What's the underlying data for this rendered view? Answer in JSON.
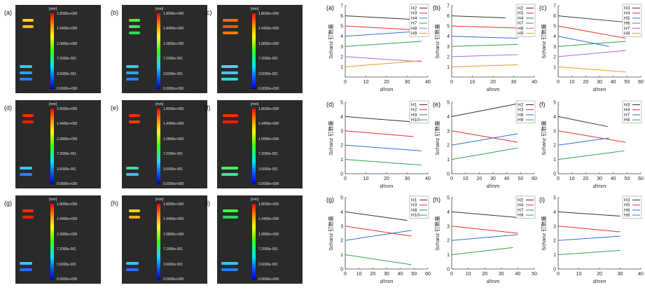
{
  "simulation": {
    "unit": "[mm]",
    "scale_ticks": [
      "1.8000e+000",
      "1.4400e+000",
      "1.0800e+000",
      "7.2000e-001",
      "3.6000e-001",
      "0.0000e+000"
    ],
    "panels": [
      {
        "label": "(a)",
        "top_pins": [
          "#ffd400",
          "#ffc000"
        ],
        "bottom_pins": [
          "#35c6ff",
          "#20a8ff",
          "#2a7bff"
        ]
      },
      {
        "label": "(b)",
        "top_pins": [
          "#3cff3c",
          "#2fe86a",
          "#29d85a"
        ],
        "bottom_pins": [
          "#35c6ff",
          "#1fa8ff",
          "#2a7bff"
        ]
      },
      {
        "label": "(c)",
        "top_pins": [
          "#ff6a00",
          "#ff5200",
          "#ff7a00"
        ],
        "bottom_pins": [
          "#4cd1ff",
          "#3ec8ff",
          "#2fd9d9"
        ]
      },
      {
        "label": "(d)",
        "top_pins": [
          "#ff2a00",
          "#ff1a00"
        ],
        "bottom_pins": [
          "#35c6ff",
          "#2a7bff"
        ]
      },
      {
        "label": "(e)",
        "top_pins": [
          "#ff2a00",
          "#ff3a00"
        ],
        "bottom_pins": [
          "#35e0a0",
          "#2fc0ff"
        ]
      },
      {
        "label": "(f)",
        "top_pins": [
          "#ff2a00",
          "#ff1a00"
        ],
        "bottom_pins": [
          "#3cff5a",
          "#35e8a0"
        ]
      },
      {
        "label": "(g)",
        "top_pins": [
          "#ff2a00",
          "#ff2000"
        ],
        "bottom_pins": [
          "#35c6ff",
          "#2a6bff"
        ]
      },
      {
        "label": "(h)",
        "top_pins": [
          "#ffd400",
          "#ffb000"
        ],
        "bottom_pins": [
          "#35c6ff",
          "#2a6bff"
        ]
      },
      {
        "label": "(i)",
        "top_pins": [
          "#3cff3c",
          "#29d85a"
        ],
        "bottom_pins": [
          "#35c6ff",
          "#2a7bff"
        ]
      }
    ]
  },
  "chart_data": [
    {
      "type": "line",
      "panel": "(a)",
      "xlabel": "d/mm",
      "ylabel": "Schanz 钉数量",
      "xlim": [
        0,
        40
      ],
      "ylim": [
        0,
        7
      ],
      "xticks": [
        0,
        10,
        20,
        30,
        40
      ],
      "yticks": [
        1,
        2,
        3,
        4,
        5,
        6,
        7
      ],
      "series": [
        {
          "name": "H2",
          "color": "#333333",
          "x": [
            0,
            37
          ],
          "y": [
            6.0,
            5.6
          ]
        },
        {
          "name": "H3",
          "color": "#e8302a",
          "x": [
            0,
            37
          ],
          "y": [
            5.0,
            4.6
          ]
        },
        {
          "name": "H4",
          "color": "#2f6de0",
          "x": [
            0,
            37
          ],
          "y": [
            4.0,
            4.5
          ]
        },
        {
          "name": "H7",
          "color": "#2ca84a",
          "x": [
            0,
            37
          ],
          "y": [
            3.0,
            3.5
          ]
        },
        {
          "name": "H8",
          "color": "#b06ad8",
          "x": [
            0,
            37
          ],
          "y": [
            2.0,
            1.5
          ]
        },
        {
          "name": "H9",
          "color": "#e0a020",
          "x": [
            0,
            37
          ],
          "y": [
            1.0,
            1.6
          ]
        }
      ]
    },
    {
      "type": "line",
      "panel": "(b)",
      "xlabel": "d/mm",
      "ylabel": "Schanz 钉数量",
      "xlim": [
        0,
        40
      ],
      "ylim": [
        0,
        7
      ],
      "xticks": [
        0,
        10,
        20,
        30,
        40
      ],
      "yticks": [
        1,
        2,
        3,
        4,
        5,
        6,
        7
      ],
      "series": [
        {
          "name": "H2",
          "color": "#333333",
          "x": [
            0,
            26
          ],
          "y": [
            6.0,
            5.8
          ]
        },
        {
          "name": "H3",
          "color": "#e8302a",
          "x": [
            0,
            32
          ],
          "y": [
            5.0,
            4.8
          ]
        },
        {
          "name": "H4",
          "color": "#2f6de0",
          "x": [
            0,
            32
          ],
          "y": [
            4.0,
            3.8
          ]
        },
        {
          "name": "H7",
          "color": "#2ca84a",
          "x": [
            0,
            32
          ],
          "y": [
            3.0,
            3.2
          ]
        },
        {
          "name": "H8",
          "color": "#b06ad8",
          "x": [
            0,
            32
          ],
          "y": [
            2.0,
            2.2
          ]
        },
        {
          "name": "H9",
          "color": "#e0a020",
          "x": [
            0,
            32
          ],
          "y": [
            1.0,
            1.2
          ]
        }
      ]
    },
    {
      "type": "line",
      "panel": "(c)",
      "xlabel": "d/mm",
      "ylabel": "Schanz 钉数量",
      "xlim": [
        0,
        60
      ],
      "ylim": [
        0,
        7
      ],
      "xticks": [
        0,
        10,
        20,
        30,
        40,
        50,
        60
      ],
      "yticks": [
        1,
        2,
        3,
        4,
        5,
        6,
        7
      ],
      "series": [
        {
          "name": "H3",
          "color": "#333333",
          "x": [
            0,
            47
          ],
          "y": [
            6.0,
            5.4
          ]
        },
        {
          "name": "H4",
          "color": "#e8302a",
          "x": [
            0,
            49
          ],
          "y": [
            5.0,
            3.8
          ]
        },
        {
          "name": "H5",
          "color": "#2f6de0",
          "x": [
            0,
            37
          ],
          "y": [
            4.0,
            3.0
          ]
        },
        {
          "name": "H6",
          "color": "#2ca84a",
          "x": [
            0,
            49
          ],
          "y": [
            3.0,
            3.5
          ]
        },
        {
          "name": "H7",
          "color": "#b06ad8",
          "x": [
            0,
            49
          ],
          "y": [
            2.0,
            2.6
          ]
        },
        {
          "name": "H8",
          "color": "#e0a020",
          "x": [
            0,
            49
          ],
          "y": [
            1.0,
            0.5
          ]
        }
      ]
    },
    {
      "type": "line",
      "panel": "(d)",
      "xlabel": "d/mm",
      "ylabel": "Schanz 钉数量",
      "xlim": [
        0,
        40
      ],
      "ylim": [
        0,
        5
      ],
      "xticks": [
        0,
        10,
        20,
        30,
        40
      ],
      "yticks": [
        0,
        1,
        2,
        3,
        4,
        5
      ],
      "series": [
        {
          "name": "H1",
          "color": "#333333",
          "x": [
            0,
            35
          ],
          "y": [
            4.0,
            3.6
          ]
        },
        {
          "name": "H2",
          "color": "#e8302a",
          "x": [
            0,
            33
          ],
          "y": [
            3.0,
            2.6
          ]
        },
        {
          "name": "H9",
          "color": "#2f6de0",
          "x": [
            0,
            37
          ],
          "y": [
            2.0,
            1.6
          ]
        },
        {
          "name": "H10",
          "color": "#2ca84a",
          "x": [
            0,
            37
          ],
          "y": [
            1.0,
            0.6
          ]
        }
      ]
    },
    {
      "type": "line",
      "panel": "(e)",
      "xlabel": "d/mm",
      "ylabel": "Schanz 钉数量",
      "xlim": [
        0,
        60
      ],
      "ylim": [
        0,
        5
      ],
      "xticks": [
        0,
        10,
        20,
        30,
        40,
        50,
        60
      ],
      "yticks": [
        0,
        1,
        2,
        3,
        4,
        5
      ],
      "series": [
        {
          "name": "H2",
          "color": "#333333",
          "x": [
            0,
            48
          ],
          "y": [
            4.0,
            4.9
          ]
        },
        {
          "name": "H3",
          "color": "#e8302a",
          "x": [
            0,
            48
          ],
          "y": [
            3.0,
            2.2
          ]
        },
        {
          "name": "H8",
          "color": "#2f6de0",
          "x": [
            0,
            48
          ],
          "y": [
            2.0,
            2.8
          ]
        },
        {
          "name": "H9",
          "color": "#2ca84a",
          "x": [
            0,
            48
          ],
          "y": [
            1.0,
            1.8
          ]
        }
      ]
    },
    {
      "type": "line",
      "panel": "(f)",
      "xlabel": "d/mm",
      "ylabel": "Schanz 钉数量",
      "xlim": [
        0,
        60
      ],
      "ylim": [
        0,
        5
      ],
      "xticks": [
        0,
        10,
        20,
        30,
        40,
        50,
        60
      ],
      "yticks": [
        0,
        1,
        2,
        3,
        4,
        5
      ],
      "series": [
        {
          "name": "H3",
          "color": "#333333",
          "x": [
            0,
            36
          ],
          "y": [
            4.0,
            3.3
          ]
        },
        {
          "name": "H4",
          "color": "#e8302a",
          "x": [
            0,
            49
          ],
          "y": [
            3.0,
            2.2
          ]
        },
        {
          "name": "H7",
          "color": "#2f6de0",
          "x": [
            0,
            37
          ],
          "y": [
            2.0,
            2.5
          ]
        },
        {
          "name": "H8",
          "color": "#2ca84a",
          "x": [
            0,
            48
          ],
          "y": [
            1.0,
            1.6
          ]
        }
      ]
    },
    {
      "type": "line",
      "panel": "(g)",
      "xlabel": "d/mm",
      "ylabel": "Schanz 钉数量",
      "xlim": [
        0,
        60
      ],
      "ylim": [
        0,
        5
      ],
      "xticks": [
        0,
        10,
        20,
        30,
        40,
        50,
        60
      ],
      "yticks": [
        0,
        1,
        2,
        3,
        4,
        5
      ],
      "series": [
        {
          "name": "H1",
          "color": "#333333",
          "x": [
            0,
            45
          ],
          "y": [
            4.0,
            3.4
          ]
        },
        {
          "name": "H3",
          "color": "#e8302a",
          "x": [
            0,
            48
          ],
          "y": [
            3.0,
            2.3
          ]
        },
        {
          "name": "H8",
          "color": "#2f6de0",
          "x": [
            0,
            48
          ],
          "y": [
            2.0,
            2.7
          ]
        },
        {
          "name": "H10",
          "color": "#2ca84a",
          "x": [
            0,
            48
          ],
          "y": [
            1.0,
            0.3
          ]
        }
      ]
    },
    {
      "type": "line",
      "panel": "(h)",
      "xlabel": "d/mm",
      "ylabel": "Schanz 钉数量",
      "xlim": [
        0,
        50
      ],
      "ylim": [
        0,
        5
      ],
      "xticks": [
        0,
        10,
        20,
        30,
        40,
        50
      ],
      "yticks": [
        0,
        1,
        2,
        3,
        4,
        5
      ],
      "series": [
        {
          "name": "H2",
          "color": "#333333",
          "x": [
            0,
            40
          ],
          "y": [
            4.0,
            3.6
          ]
        },
        {
          "name": "H4",
          "color": "#e8302a",
          "x": [
            0,
            40
          ],
          "y": [
            3.0,
            2.5
          ]
        },
        {
          "name": "H7",
          "color": "#2f6de0",
          "x": [
            0,
            40
          ],
          "y": [
            2.0,
            2.4
          ]
        },
        {
          "name": "H9",
          "color": "#2ca84a",
          "x": [
            0,
            37
          ],
          "y": [
            1.0,
            1.5
          ]
        }
      ]
    },
    {
      "type": "line",
      "panel": "(i)",
      "xlabel": "d/mm",
      "ylabel": "Schanz 钉数量",
      "xlim": [
        0,
        40
      ],
      "ylim": [
        0,
        5
      ],
      "xticks": [
        0,
        10,
        20,
        30,
        40
      ],
      "yticks": [
        0,
        1,
        2,
        3,
        4,
        5
      ],
      "series": [
        {
          "name": "H3",
          "color": "#333333",
          "x": [
            0,
            30
          ],
          "y": [
            4.0,
            3.7
          ]
        },
        {
          "name": "H5",
          "color": "#e8302a",
          "x": [
            0,
            30
          ],
          "y": [
            3.0,
            2.6
          ]
        },
        {
          "name": "H6",
          "color": "#2f6de0",
          "x": [
            0,
            30
          ],
          "y": [
            2.0,
            2.3
          ]
        },
        {
          "name": "H8",
          "color": "#2ca84a",
          "x": [
            0,
            30
          ],
          "y": [
            1.0,
            1.3
          ]
        }
      ]
    }
  ]
}
